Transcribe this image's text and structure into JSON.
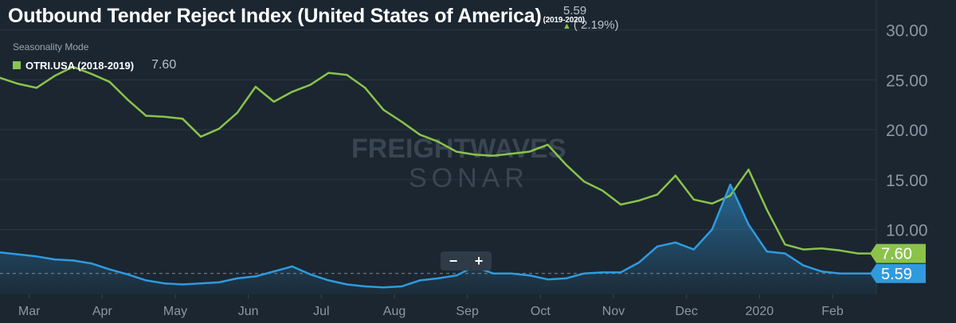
{
  "header": {
    "title": "Outbound Tender Reject Index (United States of America)",
    "title_range": "(2019-2020)",
    "current_value": "5.59",
    "change": "( 2.19%)",
    "change_direction": "up",
    "seasonality": "Seasonality Mode"
  },
  "legend": {
    "label": "OTRI.USA (2018-2019)",
    "value": "7.60"
  },
  "zoom": {
    "minus": "−",
    "plus": "+"
  },
  "watermark": {
    "line1": "FREIGHTWAVES",
    "line2": "SONAR"
  },
  "colors": {
    "background": "#1b2631",
    "grid": "#2a3642",
    "series_current": "#2f9bde",
    "series_prior": "#8bc34a",
    "tick_text": "#8c97a3"
  },
  "chart_data": {
    "type": "line",
    "title": "Outbound Tender Reject Index (United States of America)",
    "xlabel": "",
    "ylabel": "",
    "x": [
      0,
      0.25,
      0.5,
      0.75,
      1,
      1.25,
      1.5,
      1.75,
      2,
      2.25,
      2.5,
      2.75,
      3,
      3.25,
      3.5,
      3.75,
      4,
      4.25,
      4.5,
      4.75,
      5,
      5.25,
      5.5,
      5.75,
      6,
      6.25,
      6.5,
      6.75,
      7,
      7.25,
      7.5,
      7.75,
      8,
      8.25,
      8.5,
      8.75,
      9,
      9.25,
      9.5,
      9.75,
      10,
      10.25,
      10.5,
      10.75,
      11,
      11.25,
      11.5,
      11.75,
      12
    ],
    "x_ticks": [
      {
        "x": 0.4,
        "label": "Mar"
      },
      {
        "x": 1.4,
        "label": "Apr"
      },
      {
        "x": 2.4,
        "label": "May"
      },
      {
        "x": 3.4,
        "label": "Jun"
      },
      {
        "x": 4.4,
        "label": "Jul"
      },
      {
        "x": 5.4,
        "label": "Aug"
      },
      {
        "x": 6.4,
        "label": "Sep"
      },
      {
        "x": 7.4,
        "label": "Oct"
      },
      {
        "x": 8.4,
        "label": "Nov"
      },
      {
        "x": 9.4,
        "label": "Dec"
      },
      {
        "x": 10.4,
        "label": "2020"
      },
      {
        "x": 11.4,
        "label": "Feb"
      }
    ],
    "y_ticks": [
      10,
      15,
      20,
      25,
      30
    ],
    "y_tick_labels": [
      "10.00",
      "15.00",
      "20.00",
      "25.00",
      "30.00"
    ],
    "ylim": [
      3.5,
      33
    ],
    "xlim": [
      0,
      12
    ],
    "series": [
      {
        "name": "OTRI.USA (2018-2019)",
        "color": "#8bc34a",
        "last_label": "7.60",
        "values": [
          25.2,
          24.6,
          24.2,
          25.4,
          26.3,
          25.6,
          24.8,
          23.0,
          21.4,
          21.3,
          21.1,
          19.3,
          20.1,
          21.7,
          24.3,
          22.8,
          23.8,
          24.5,
          25.7,
          25.5,
          24.2,
          22.0,
          20.8,
          19.5,
          18.8,
          17.8,
          17.5,
          17.4,
          17.6,
          17.8,
          18.5,
          16.5,
          14.8,
          13.9,
          12.5,
          12.9,
          13.5,
          15.4,
          13.0,
          12.6,
          13.4,
          16.0,
          12.0,
          8.5,
          8.0,
          8.1,
          7.9,
          7.6,
          7.6
        ]
      },
      {
        "name": "OTRI.USA (2019-2020)",
        "color": "#2f9bde",
        "last_label": "5.59",
        "values": [
          7.7,
          7.5,
          7.3,
          7.0,
          6.9,
          6.6,
          6.0,
          5.5,
          4.9,
          4.6,
          4.5,
          4.6,
          4.7,
          5.1,
          5.3,
          5.8,
          6.3,
          5.5,
          4.9,
          4.5,
          4.3,
          4.2,
          4.3,
          4.9,
          5.1,
          5.4,
          6.3,
          5.6,
          5.6,
          5.4,
          5.0,
          5.1,
          5.6,
          5.7,
          5.7,
          6.7,
          8.3,
          8.7,
          8.0,
          10.0,
          14.5,
          10.5,
          7.8,
          7.6,
          6.4,
          5.8,
          5.6,
          5.6,
          5.59
        ]
      }
    ]
  }
}
